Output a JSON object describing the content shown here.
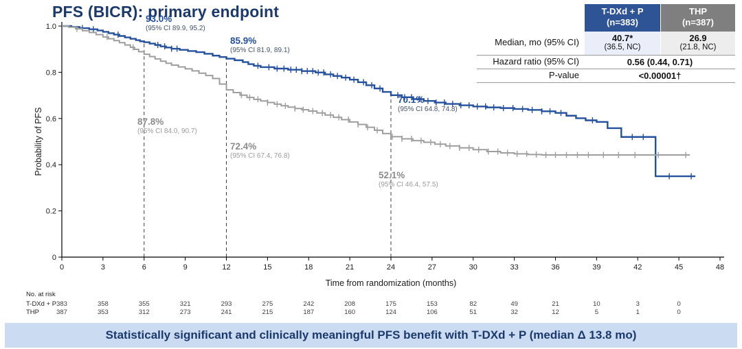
{
  "title": "PFS (BICR): primary endpoint",
  "results_table": {
    "col1_header_line1": "T-DXd + P",
    "col1_header_line2": "(n=383)",
    "col2_header_line1": "THP",
    "col2_header_line2": "(n=387)",
    "rows": {
      "median_label": "Median, mo (95% CI)",
      "median_col1_value": "40.7*",
      "median_col1_ci": "(36.5, NC)",
      "median_col2_value": "26.9",
      "median_col2_ci": "(21.8, NC)",
      "hr_label": "Hazard ratio (95% CI)",
      "hr_value": "0.56 (0.44, 0.71)",
      "p_label": "P-value",
      "p_value": "<0.00001†"
    }
  },
  "banner": {
    "text": "Statistically significant and clinically meaningful PFS benefit with T-DXd + P (median Δ 13.8 mo)"
  },
  "chart_data": {
    "type": "line",
    "subtype": "kaplan-meier-step",
    "xlabel": "Time from randomization (months)",
    "ylabel": "Probability of PFS",
    "xlim": [
      0,
      48
    ],
    "ylim": [
      0,
      1.0
    ],
    "xticks": [
      0,
      3,
      6,
      9,
      12,
      15,
      18,
      21,
      24,
      27,
      30,
      33,
      36,
      39,
      42,
      45,
      48
    ],
    "yticks": [
      0,
      0.2,
      0.4,
      0.6,
      0.8,
      1.0
    ],
    "ytick_labels": [
      "0",
      "0.2",
      "0.4",
      "0.6",
      "0.8",
      "1.0"
    ],
    "grid": false,
    "dashed_reference_months": [
      6,
      12,
      24
    ],
    "series": [
      {
        "name": "T-DXd + P",
        "color": "#24509e",
        "steps": [
          [
            0,
            1.0
          ],
          [
            0.7,
            0.996
          ],
          [
            1.3,
            0.991
          ],
          [
            2,
            0.986
          ],
          [
            2.6,
            0.981
          ],
          [
            3,
            0.975
          ],
          [
            3.4,
            0.969
          ],
          [
            3.8,
            0.963
          ],
          [
            4.2,
            0.957
          ],
          [
            4.6,
            0.951
          ],
          [
            5,
            0.945
          ],
          [
            5.4,
            0.939
          ],
          [
            5.7,
            0.934
          ],
          [
            6,
            0.93
          ],
          [
            6.4,
            0.924
          ],
          [
            6.8,
            0.918
          ],
          [
            7.2,
            0.912
          ],
          [
            7.6,
            0.907
          ],
          [
            8,
            0.902
          ],
          [
            8.6,
            0.897
          ],
          [
            9.2,
            0.892
          ],
          [
            9.8,
            0.887
          ],
          [
            10.4,
            0.88
          ],
          [
            11,
            0.872
          ],
          [
            11.5,
            0.866
          ],
          [
            12,
            0.859
          ],
          [
            12.6,
            0.852
          ],
          [
            13.2,
            0.844
          ],
          [
            13.6,
            0.835
          ],
          [
            14,
            0.828
          ],
          [
            14.5,
            0.822
          ],
          [
            15.5,
            0.816
          ],
          [
            16.5,
            0.811
          ],
          [
            17.5,
            0.805
          ],
          [
            18.5,
            0.799
          ],
          [
            19.2,
            0.791
          ],
          [
            19.8,
            0.784
          ],
          [
            20.4,
            0.777
          ],
          [
            21,
            0.768
          ],
          [
            21.6,
            0.757
          ],
          [
            22.2,
            0.744
          ],
          [
            22.8,
            0.73
          ],
          [
            23.4,
            0.715
          ],
          [
            24,
            0.701
          ],
          [
            24.8,
            0.692
          ],
          [
            25.6,
            0.684
          ],
          [
            26.4,
            0.676
          ],
          [
            27.2,
            0.669
          ],
          [
            28,
            0.663
          ],
          [
            29,
            0.657
          ],
          [
            30,
            0.652
          ],
          [
            31,
            0.648
          ],
          [
            32,
            0.645
          ],
          [
            33,
            0.641
          ],
          [
            34,
            0.637
          ],
          [
            35,
            0.631
          ],
          [
            36,
            0.624
          ],
          [
            36.8,
            0.612
          ],
          [
            37.5,
            0.601
          ],
          [
            38.2,
            0.592
          ],
          [
            39,
            0.585
          ],
          [
            39.8,
            0.558
          ],
          [
            40.8,
            0.52
          ],
          [
            43.3,
            0.35
          ],
          [
            46.2,
            0.35
          ]
        ],
        "censor_months": [
          1.5,
          2.3,
          4.1,
          7.0,
          7.5,
          8.0,
          8.4,
          14.3,
          15.1,
          15.7,
          16.2,
          16.7,
          17.1,
          17.5,
          17.9,
          18.3,
          18.7,
          19.1,
          19.6,
          20.1,
          20.7,
          21.3,
          22.0,
          22.6,
          23.2,
          24.5,
          25.0,
          25.5,
          26.1,
          26.7,
          27.3,
          27.9,
          28.5,
          29.1,
          29.7,
          30.3,
          30.9,
          31.5,
          32.2,
          32.9,
          33.6,
          34.3,
          35.0,
          35.6,
          36.4,
          38.7,
          41.6,
          42.4,
          44.3,
          45.9
        ]
      },
      {
        "name": "THP",
        "color": "#9e9e9e",
        "steps": [
          [
            0,
            1.0
          ],
          [
            0.5,
            0.995
          ],
          [
            1,
            0.988
          ],
          [
            1.5,
            0.98
          ],
          [
            2,
            0.972
          ],
          [
            2.5,
            0.963
          ],
          [
            3,
            0.953
          ],
          [
            3.4,
            0.945
          ],
          [
            3.8,
            0.937
          ],
          [
            4.2,
            0.928
          ],
          [
            4.6,
            0.918
          ],
          [
            5,
            0.908
          ],
          [
            5.3,
            0.899
          ],
          [
            5.6,
            0.889
          ],
          [
            6,
            0.878
          ],
          [
            6.4,
            0.868
          ],
          [
            6.8,
            0.858
          ],
          [
            7.2,
            0.848
          ],
          [
            7.6,
            0.839
          ],
          [
            8,
            0.831
          ],
          [
            8.5,
            0.823
          ],
          [
            9,
            0.815
          ],
          [
            9.5,
            0.806
          ],
          [
            10,
            0.796
          ],
          [
            10.5,
            0.786
          ],
          [
            11,
            0.773
          ],
          [
            11.5,
            0.749
          ],
          [
            12,
            0.724
          ],
          [
            12.5,
            0.712
          ],
          [
            13,
            0.701
          ],
          [
            13.5,
            0.691
          ],
          [
            14,
            0.683
          ],
          [
            14.5,
            0.676
          ],
          [
            15,
            0.669
          ],
          [
            15.5,
            0.662
          ],
          [
            16,
            0.655
          ],
          [
            16.5,
            0.649
          ],
          [
            17,
            0.643
          ],
          [
            17.5,
            0.638
          ],
          [
            18,
            0.632
          ],
          [
            18.6,
            0.624
          ],
          [
            19.2,
            0.615
          ],
          [
            19.8,
            0.605
          ],
          [
            20.4,
            0.595
          ],
          [
            21,
            0.585
          ],
          [
            21.6,
            0.574
          ],
          [
            22.2,
            0.562
          ],
          [
            22.8,
            0.549
          ],
          [
            23.4,
            0.535
          ],
          [
            24,
            0.521
          ],
          [
            24.8,
            0.512
          ],
          [
            25.6,
            0.504
          ],
          [
            26.4,
            0.497
          ],
          [
            27.2,
            0.489
          ],
          [
            28,
            0.481
          ],
          [
            29,
            0.473
          ],
          [
            30,
            0.465
          ],
          [
            31,
            0.457
          ],
          [
            32,
            0.451
          ],
          [
            33,
            0.447
          ],
          [
            34,
            0.444
          ],
          [
            35,
            0.442
          ],
          [
            45.8,
            0.442
          ]
        ],
        "censor_months": [
          1.1,
          3.3,
          5.2,
          13.1,
          13.7,
          14.3,
          15.0,
          15.7,
          16.3,
          17.0,
          17.6,
          18.3,
          19.0,
          19.6,
          20.2,
          20.9,
          21.6,
          22.3,
          23.0,
          24.1,
          24.8,
          25.5,
          26.2,
          26.9,
          27.6,
          28.3,
          29.0,
          29.7,
          30.4,
          31.1,
          31.8,
          32.5,
          33.2,
          33.9,
          34.6,
          35.3,
          36.0,
          36.8,
          37.6,
          38.4,
          39.5,
          40.6,
          41.8,
          43.5,
          45.5
        ]
      }
    ],
    "annotations": [
      {
        "series": "T-DXd + P",
        "text": "93.0%",
        "ci": "(95% CI 89.9, 95.2)",
        "left": 212,
        "top": 20,
        "color": "#24509e",
        "ci_color": "#44546a"
      },
      {
        "series": "T-DXd + P",
        "text": "85.9%",
        "ci": "(95% CI 81.9, 89.1)",
        "left": 335,
        "top": 52,
        "color": "#24509e",
        "ci_color": "#44546a"
      },
      {
        "series": "T-DXd + P",
        "text": "70.1%",
        "ci": "(95% CI 64.8, 74.8)",
        "left": 579,
        "top": 138,
        "color": "#24509e",
        "ci_color": "#44546a"
      },
      {
        "series": "THP",
        "text": "87.8%",
        "ci": "(95% CI 84.0, 90.7)",
        "left": 200,
        "top": 170,
        "color": "#8c8c8c",
        "ci_color": "#9a9a9a"
      },
      {
        "series": "THP",
        "text": "72.4%",
        "ci": "(95% CI 67.4, 76.8)",
        "left": 335,
        "top": 206,
        "color": "#8c8c8c",
        "ci_color": "#9a9a9a"
      },
      {
        "series": "THP",
        "text": "52.1%",
        "ci": "(95% CI 46.4, 57.5)",
        "left": 551,
        "top": 248,
        "color": "#8c8c8c",
        "ci_color": "#9a9a9a"
      }
    ],
    "at_risk": {
      "heading": "No. at risk",
      "months": [
        0,
        3,
        6,
        9,
        12,
        15,
        18,
        21,
        24,
        27,
        30,
        33,
        36,
        39,
        42,
        45
      ],
      "rows": [
        {
          "label": "T-DXd + P",
          "values": [
            383,
            358,
            355,
            321,
            293,
            275,
            242,
            208,
            175,
            153,
            82,
            49,
            21,
            10,
            3,
            0
          ]
        },
        {
          "label": "THP",
          "values": [
            387,
            353,
            312,
            273,
            241,
            215,
            187,
            160,
            124,
            106,
            51,
            32,
            12,
            5,
            1,
            0
          ]
        }
      ]
    }
  }
}
